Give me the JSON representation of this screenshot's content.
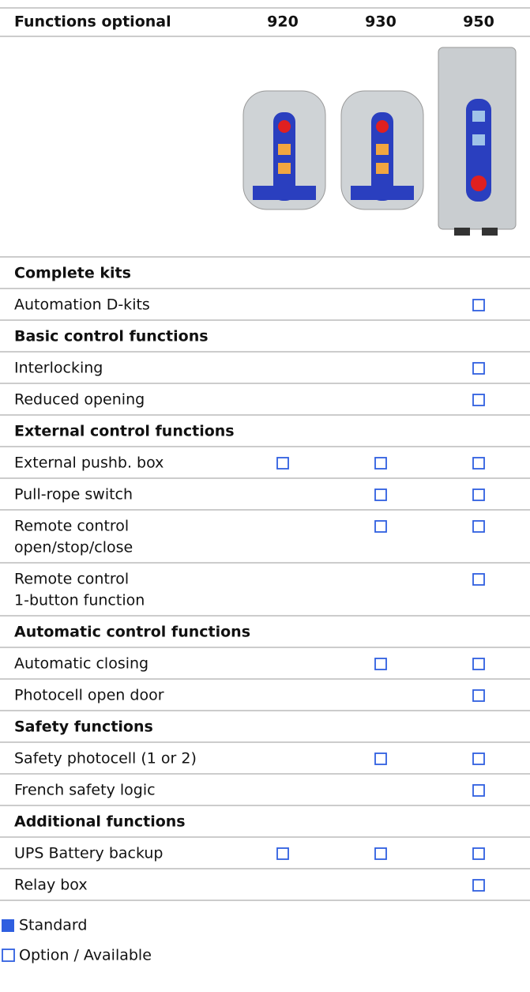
{
  "header": {
    "title": "Functions optional",
    "columns": [
      "920",
      "930",
      "950"
    ]
  },
  "rows": [
    {
      "section": "Complete kits"
    },
    {
      "label": [
        "Automation D-kits"
      ],
      "option": [
        false,
        false,
        true
      ]
    },
    {
      "section": "Basic control functions"
    },
    {
      "label": [
        "Interlocking"
      ],
      "option": [
        false,
        false,
        true
      ]
    },
    {
      "label": [
        "Reduced opening"
      ],
      "option": [
        false,
        false,
        true
      ]
    },
    {
      "section": "External control functions"
    },
    {
      "label": [
        "External pushb. box"
      ],
      "option": [
        true,
        true,
        true
      ]
    },
    {
      "label": [
        "Pull-rope switch"
      ],
      "option": [
        false,
        true,
        true
      ]
    },
    {
      "label": [
        "Remote control",
        "open/stop/close"
      ],
      "option": [
        false,
        true,
        true
      ]
    },
    {
      "label": [
        "Remote control",
        "1-button function"
      ],
      "option": [
        false,
        false,
        true
      ]
    },
    {
      "section": "Automatic control functions"
    },
    {
      "label": [
        "Automatic closing"
      ],
      "option": [
        false,
        true,
        true
      ]
    },
    {
      "label": [
        "Photocell open door"
      ],
      "option": [
        false,
        false,
        true
      ]
    },
    {
      "section": "Safety functions"
    },
    {
      "label": [
        "Safety photocell (1 or 2)"
      ],
      "option": [
        false,
        true,
        true
      ]
    },
    {
      "label": [
        "French safety logic"
      ],
      "option": [
        false,
        false,
        true
      ]
    },
    {
      "section": "Additional functions"
    },
    {
      "label": [
        "UPS Battery backup"
      ],
      "option": [
        true,
        true,
        true
      ]
    },
    {
      "label": [
        "Relay box"
      ],
      "option": [
        false,
        false,
        true
      ]
    }
  ],
  "legend": {
    "standard": "Standard",
    "option": "Option / Available"
  }
}
